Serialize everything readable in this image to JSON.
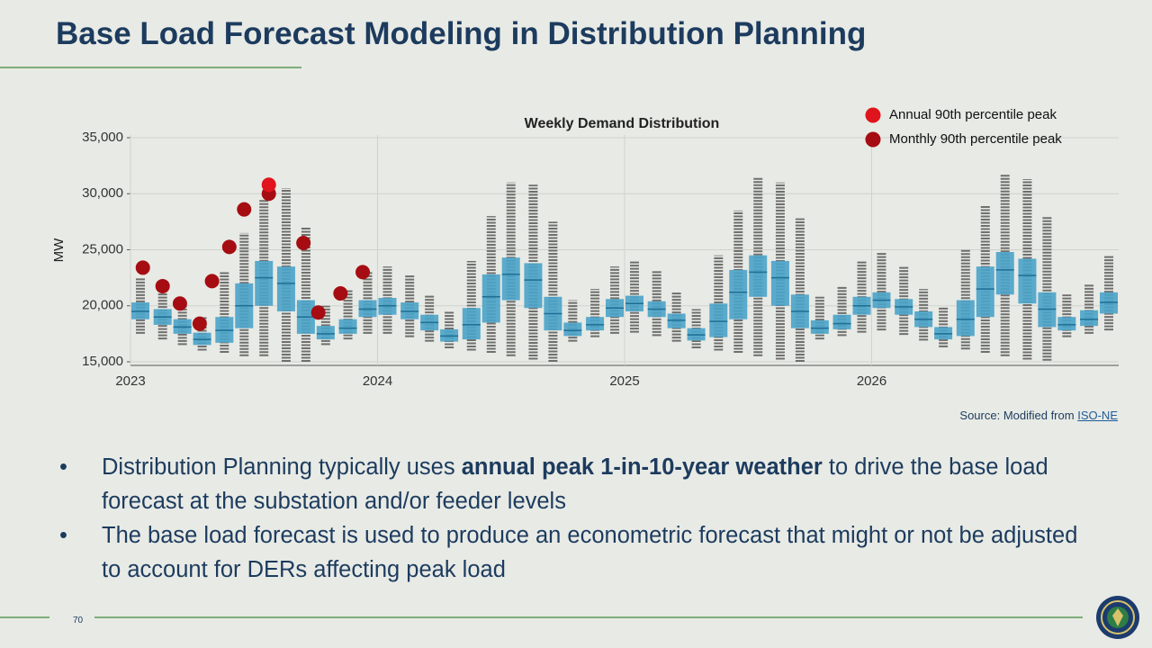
{
  "title": "Base Load Forecast Modeling in Distribution Planning",
  "chart_data": {
    "type": "box",
    "title": "Weekly Demand Distribution",
    "y_label": "MW",
    "xlim": [
      2023,
      2027
    ],
    "xticks": [
      2023,
      2024,
      2025,
      2026
    ],
    "ylim": [
      15000,
      35000
    ],
    "yticks": [
      {
        "value": 15000,
        "label": "15,000"
      },
      {
        "value": 20000,
        "label": "20,000"
      },
      {
        "value": 25000,
        "label": "25,000"
      },
      {
        "value": 30000,
        "label": "30,000"
      },
      {
        "value": 35000,
        "label": "35,000"
      }
    ],
    "grid": true,
    "whisker_color": "#5a5a5a",
    "box_color": "#4aa3c9",
    "legend": "top-right",
    "boxes": {
      "x": [
        2023.04,
        2023.13,
        2023.21,
        2023.29,
        2023.38,
        2023.46,
        2023.54,
        2023.63,
        2023.71,
        2023.79,
        2023.88,
        2023.96,
        2024.04,
        2024.13,
        2024.21,
        2024.29,
        2024.38,
        2024.46,
        2024.54,
        2024.63,
        2024.71,
        2024.79,
        2024.88,
        2024.96,
        2025.04,
        2025.13,
        2025.21,
        2025.29,
        2025.38,
        2025.46,
        2025.54,
        2025.63,
        2025.71,
        2025.79,
        2025.88,
        2025.96,
        2026.04,
        2026.13,
        2026.21,
        2026.29,
        2026.38,
        2026.46,
        2026.54,
        2026.63,
        2026.71,
        2026.79,
        2026.88,
        2026.96
      ],
      "low": [
        17500,
        17000,
        16500,
        16000,
        15800,
        15500,
        15500,
        15000,
        15000,
        16500,
        17000,
        17500,
        17500,
        17200,
        16800,
        16200,
        16000,
        15800,
        15500,
        15200,
        15000,
        16800,
        17200,
        17500,
        17600,
        17300,
        16800,
        16200,
        16000,
        15800,
        15500,
        15200,
        15000,
        17000,
        17300,
        17600,
        17800,
        17400,
        16900,
        16300,
        16100,
        15800,
        15500,
        15200,
        15100,
        17200,
        17500,
        17800
      ],
      "q1": [
        18800,
        18300,
        17500,
        16500,
        16700,
        18000,
        20000,
        19500,
        17500,
        17000,
        17500,
        19000,
        19200,
        18800,
        17800,
        16800,
        17000,
        18500,
        20500,
        19800,
        17800,
        17300,
        17800,
        19000,
        19500,
        19000,
        18000,
        16900,
        17200,
        18800,
        20800,
        20000,
        18000,
        17500,
        17900,
        19200,
        19800,
        19200,
        18100,
        17000,
        17300,
        19000,
        21000,
        20200,
        18100,
        17800,
        18200,
        19300
      ],
      "median": [
        19500,
        19000,
        18100,
        17000,
        17800,
        20000,
        22500,
        22000,
        19000,
        17500,
        18000,
        19700,
        20000,
        19500,
        18500,
        17300,
        18300,
        20800,
        22800,
        22300,
        19300,
        17800,
        18300,
        19800,
        20200,
        19700,
        18700,
        17400,
        18600,
        21200,
        23000,
        22500,
        19500,
        18000,
        18400,
        20000,
        20500,
        19900,
        18800,
        17500,
        18800,
        21500,
        23200,
        22700,
        19700,
        18300,
        18800,
        20300
      ],
      "q3": [
        20300,
        19700,
        18800,
        17600,
        19000,
        22000,
        24000,
        23500,
        20500,
        18200,
        18800,
        20500,
        20700,
        20300,
        19200,
        17900,
        19800,
        22800,
        24300,
        23800,
        20800,
        18500,
        19000,
        20600,
        20900,
        20400,
        19300,
        18000,
        20200,
        23200,
        24500,
        24000,
        21000,
        18700,
        19200,
        20800,
        21200,
        20600,
        19500,
        18100,
        20500,
        23500,
        24800,
        24200,
        21200,
        19000,
        19600,
        21200
      ],
      "high": [
        22500,
        21800,
        20200,
        19000,
        23000,
        26500,
        29500,
        30500,
        27000,
        20000,
        21500,
        23000,
        23500,
        22800,
        21000,
        19500,
        24000,
        28000,
        31000,
        30800,
        27500,
        20500,
        21500,
        23500,
        24000,
        23200,
        21300,
        19700,
        24500,
        28500,
        31500,
        31000,
        27800,
        20800,
        21800,
        24000,
        24800,
        23500,
        21500,
        19900,
        25000,
        29000,
        31800,
        31300,
        28000,
        21000,
        22000,
        24500
      ]
    },
    "series": [
      {
        "name": "Annual 90th percentile peak",
        "color": "#e0141c",
        "x": [
          2023.56
        ],
        "values": [
          30800
        ]
      },
      {
        "name": "Monthly 90th percentile peak",
        "color": "#a50d12",
        "x": [
          2023.05,
          2023.13,
          2023.2,
          2023.28,
          2023.33,
          2023.4,
          2023.46,
          2023.56,
          2023.7,
          2023.76,
          2023.85,
          2023.94
        ],
        "values": [
          23400,
          21750,
          20200,
          18400,
          22200,
          25250,
          28600,
          30000,
          25600,
          19400,
          21100,
          23000
        ]
      }
    ]
  },
  "source": {
    "prefix": "Source: Modified from",
    "link": "ISO-NE"
  },
  "bullets": [
    [
      "Distribution Planning typically uses",
      "annual peak 1-in-10-year weather",
      "to drive the base load forecast at the substation and/or feeder levels"
    ],
    [
      "The base load forecast is used to produce an econometric forecast that might or not be adjusted to account for DERs affecting peak load"
    ]
  ],
  "page_number": "70"
}
